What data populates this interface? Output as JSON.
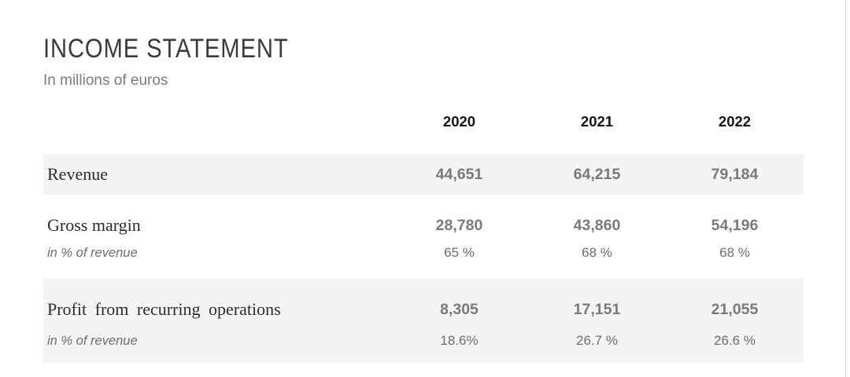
{
  "header": {
    "title": "INCOME STATEMENT",
    "subtitle": "In millions of euros"
  },
  "table": {
    "years": [
      "2020",
      "2021",
      "2022"
    ],
    "rows": [
      {
        "label": "Revenue",
        "values": [
          "44,651",
          "64,215",
          "79,184"
        ]
      },
      {
        "label": "Gross margin",
        "values": [
          "28,780",
          "43,860",
          "54,196"
        ],
        "sub_label": "in % of revenue",
        "sub_values": [
          "65 %",
          "68 %",
          "68 %"
        ]
      },
      {
        "label": "Profit from recurring operations",
        "values": [
          "8,305",
          "17,151",
          "21,055"
        ],
        "sub_label": "in % of revenue",
        "sub_values": [
          "18.6%",
          "26.7 %",
          "26.6 %"
        ]
      }
    ]
  },
  "colors": {
    "band_background": "#f4f4f4",
    "value_text": "#7a7a7a",
    "header_text": "#161616",
    "right_border": "#d3d3d3"
  }
}
